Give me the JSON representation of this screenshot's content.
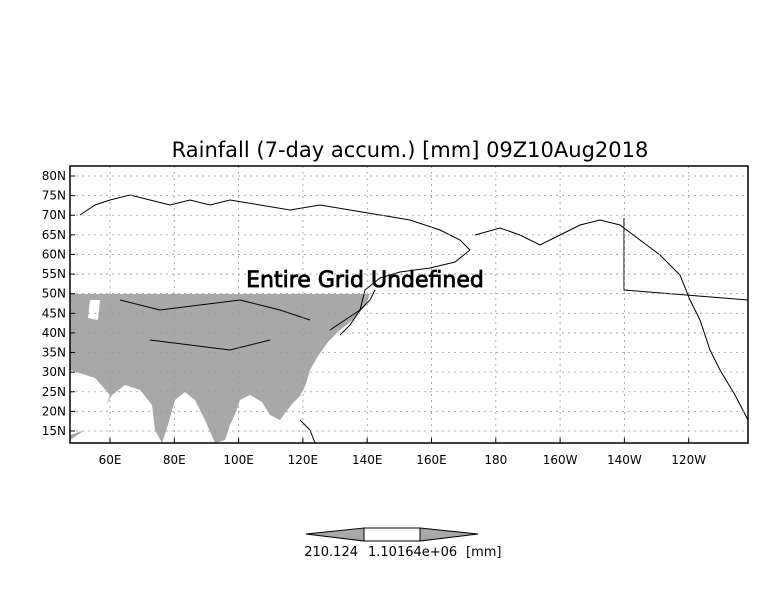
{
  "title": "Rainfall (7-day accum.) [mm] 09Z10Aug2018",
  "overlay_message": "Entire Grid Undefined",
  "lat_labels": [
    "80N",
    "75N",
    "70N",
    "65N",
    "60N",
    "55N",
    "50N",
    "45N",
    "40N",
    "35N",
    "30N",
    "25N",
    "20N",
    "15N"
  ],
  "lat_values": [
    80,
    75,
    70,
    65,
    60,
    55,
    50,
    45,
    40,
    35,
    30,
    25,
    20,
    15
  ],
  "lon_labels": [
    "60E",
    "80E",
    "100E",
    "120E",
    "140E",
    "160E",
    "180",
    "160W",
    "140W",
    "120W"
  ],
  "lon_values": [
    60,
    80,
    100,
    120,
    140,
    160,
    180,
    200,
    220,
    240
  ],
  "colorbar": {
    "labels": [
      "210.124",
      "1.10164e+06"
    ],
    "unit": "[mm]",
    "colors": {
      "low": "#a8a8a8",
      "mid": "#ffffff",
      "high": "#a8a8a8"
    }
  },
  "colors": {
    "undefined_land": "#a8a8a8",
    "coast": "#000000",
    "grid": "#999999"
  }
}
